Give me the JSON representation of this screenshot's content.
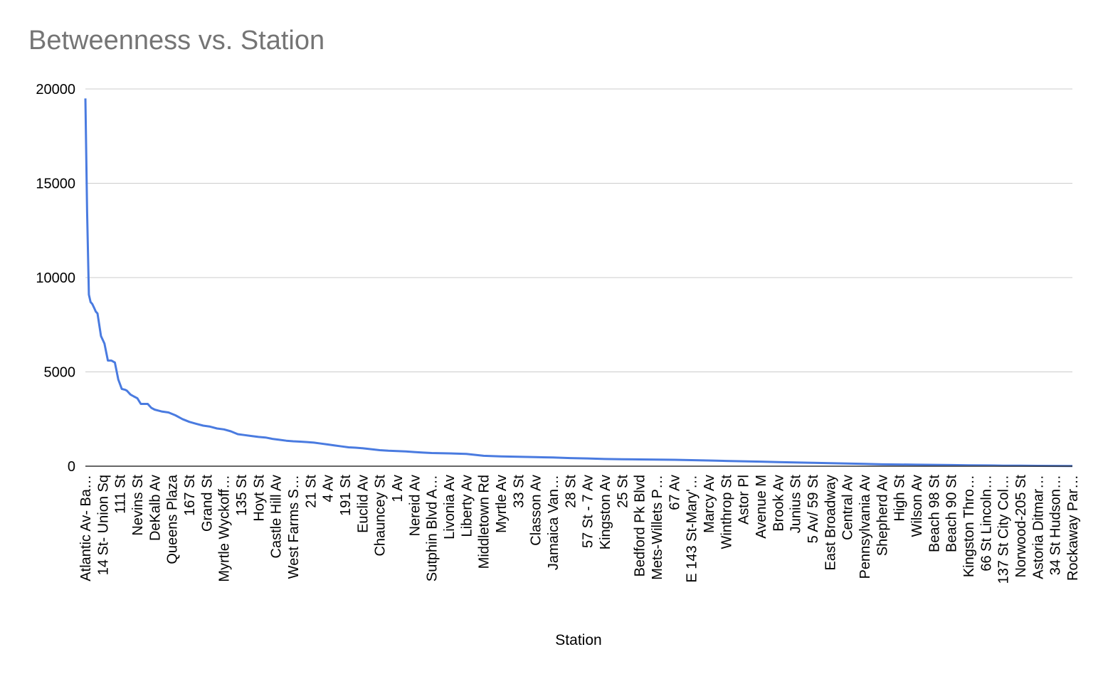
{
  "chart_data": {
    "type": "line",
    "title": "Betweenness vs. Station",
    "xlabel": "Station",
    "ylabel": "",
    "ylim": [
      0,
      20000
    ],
    "y_ticks": [
      0,
      5000,
      10000,
      15000,
      20000
    ],
    "grid": true,
    "legend": "none",
    "line_color": "#4a7be0",
    "x_tick_labels": [
      "Atlantic Av- Ba…",
      "14 St- Union Sq",
      "111 St",
      "Nevins St",
      "DeKalb Av",
      "Queens Plaza",
      "167 St",
      "Grand St",
      "Myrtle Wyckoff…",
      "135 St",
      "Hoyt St",
      "Castle Hill Av",
      "West Farms S…",
      "21 St",
      "4 Av",
      "191 St",
      "Euclid Av",
      "Chauncey St",
      "1 Av",
      "Nereid Av",
      "Sutphin Blvd A…",
      "Livonia Av",
      "Liberty Av",
      "Middletown Rd",
      "Myrtle Av",
      "33 St",
      "Classon Av",
      "Jamaica Van…",
      "28 St",
      "57 St - 7 Av",
      "Kingston Av",
      "25 St",
      "Bedford Pk Blvd",
      "Mets-Willets P…",
      "67 Av",
      "E 143 St-Mary'…",
      "Marcy Av",
      "Winthrop St",
      "Astor Pl",
      "Avenue M",
      "Brook Av",
      "Junius St",
      "5 Av/ 59 St",
      "East Broadway",
      "Central Av",
      "Pennsylvania Av",
      "Shepherd Av",
      "High St",
      "Wilson Av",
      "Beach 98 St",
      "Beach 90 St",
      "Kingston Thro…",
      "66 St Lincoln…",
      "137 St City Col…",
      "Norwood-205 St",
      "Astoria Ditmar…",
      "34 St Hudson…",
      "Rockaway Par…"
    ],
    "series": [
      {
        "name": "Betweenness",
        "x": [
          0,
          1,
          2,
          3,
          4,
          5,
          6,
          7,
          9,
          11,
          13,
          15,
          17,
          19,
          21,
          23,
          24,
          26,
          28,
          30,
          32,
          34,
          36,
          38,
          40,
          42,
          44,
          48,
          52,
          56,
          60,
          64,
          68,
          72,
          76,
          80,
          84,
          88,
          92,
          96,
          100,
          104,
          108,
          112,
          116,
          120,
          124,
          128,
          132,
          136,
          140,
          144,
          148,
          152,
          156,
          160,
          165,
          170,
          175,
          180,
          185,
          190,
          195,
          200,
          210,
          220,
          230,
          240,
          250,
          260,
          270,
          280,
          290,
          300,
          310,
          320,
          330,
          340,
          350,
          360,
          370,
          380,
          390,
          400,
          410,
          420,
          430,
          440,
          450,
          460,
          470,
          480,
          490,
          500,
          510,
          520,
          530,
          540,
          550,
          560,
          570
        ],
        "values": [
          19500,
          13500,
          9100,
          8700,
          8600,
          8400,
          8200,
          8100,
          6900,
          6500,
          5600,
          5600,
          5500,
          4600,
          4100,
          4050,
          4000,
          3800,
          3700,
          3600,
          3300,
          3300,
          3300,
          3100,
          3000,
          2950,
          2900,
          2850,
          2700,
          2500,
          2350,
          2250,
          2150,
          2100,
          2000,
          1950,
          1850,
          1700,
          1650,
          1600,
          1550,
          1520,
          1450,
          1400,
          1350,
          1320,
          1300,
          1280,
          1250,
          1200,
          1150,
          1100,
          1050,
          1000,
          980,
          950,
          900,
          850,
          820,
          800,
          780,
          750,
          720,
          700,
          680,
          650,
          550,
          520,
          500,
          480,
          460,
          430,
          410,
          380,
          370,
          360,
          350,
          340,
          320,
          300,
          280,
          260,
          240,
          220,
          200,
          180,
          160,
          140,
          120,
          100,
          90,
          80,
          70,
          60,
          50,
          40,
          30,
          25,
          20,
          15,
          10
        ]
      }
    ],
    "x_max_index": 570
  }
}
